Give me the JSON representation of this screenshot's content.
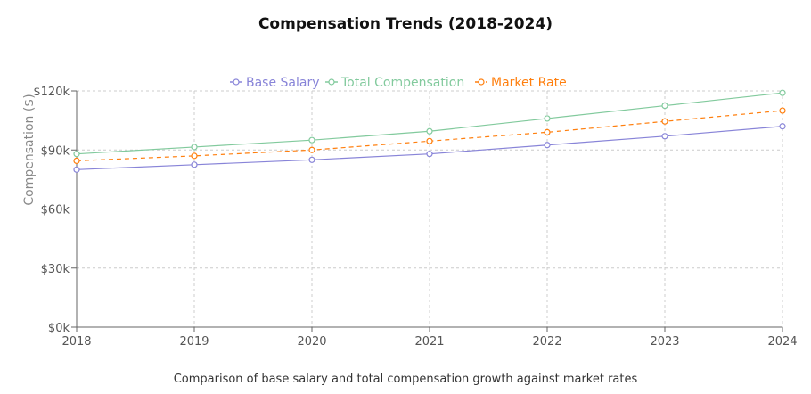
{
  "chart_data": {
    "type": "line",
    "title": "Compensation Trends (2018-2024)",
    "caption": "Comparison of base salary and total compensation growth against market rates",
    "xlabel": "",
    "ylabel": "Compensation ($)",
    "categories": [
      "2018",
      "2019",
      "2020",
      "2021",
      "2022",
      "2023",
      "2024"
    ],
    "ylim": [
      0,
      120000
    ],
    "yticks": [
      0,
      30000,
      60000,
      90000,
      120000
    ],
    "ytick_labels": [
      "$0k",
      "$30k",
      "$60k",
      "$90k",
      "$120k"
    ],
    "grid": true,
    "legend_position": "top",
    "series": [
      {
        "name": "Base Salary",
        "color": "#8884d8",
        "dashed": false,
        "values": [
          80000,
          82500,
          85000,
          88000,
          92500,
          97000,
          102000
        ]
      },
      {
        "name": "Total Compensation",
        "color": "#82ca9d",
        "dashed": false,
        "values": [
          88000,
          91500,
          95000,
          99500,
          106000,
          112500,
          119000
        ]
      },
      {
        "name": "Market Rate",
        "color": "#ff7f0e",
        "dashed": true,
        "values": [
          84500,
          87000,
          90000,
          94500,
          99000,
          104500,
          110000
        ]
      }
    ]
  }
}
